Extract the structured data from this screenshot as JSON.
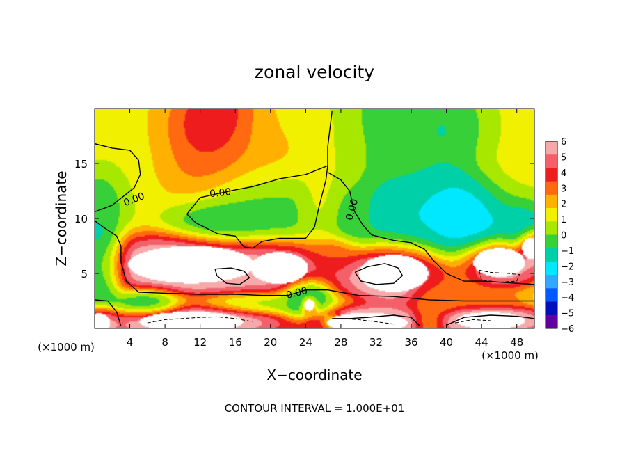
{
  "chart_data": {
    "type": "heatmap",
    "title": "zonal velocity",
    "xlabel": "X−coordinate",
    "ylabel": "Z−coordinate",
    "x_unit_label": "(×1000 m)",
    "footer": "CONTOUR INTERVAL = 1.000E+01",
    "xlim": [
      0,
      50
    ],
    "ylim": [
      0,
      20
    ],
    "x_ticks": [
      4,
      8,
      12,
      16,
      20,
      24,
      28,
      32,
      36,
      40,
      44,
      48
    ],
    "y_ticks": [
      5,
      10,
      15
    ],
    "colorbar": {
      "levels": [
        6,
        5,
        4,
        3,
        2,
        1,
        0,
        -1,
        -2,
        -3,
        -4,
        -5,
        -6
      ],
      "tick_labels": [
        "6",
        "5",
        "4",
        "3",
        "2",
        "1",
        "0",
        "−1",
        "−2",
        "−3",
        "−4",
        "−5",
        "−6"
      ],
      "colors": [
        "#f7a8a8",
        "#f4606a",
        "#ee1c1c",
        "#ff6a10",
        "#ffb000",
        "#f0f000",
        "#a8e800",
        "#38d038",
        "#00d0a8",
        "#00e8ff",
        "#30a8ff",
        "#0058ff",
        "#0010b8",
        "#6000a0"
      ]
    },
    "contour_labels": [
      {
        "text": "0.00",
        "x": 4.5,
        "z": 11.7,
        "angle": -22
      },
      {
        "text": "0.00",
        "x": 14.3,
        "z": 12.3,
        "angle": -6
      },
      {
        "text": "0.00",
        "x": 29.3,
        "z": 10.8,
        "angle": -74
      },
      {
        "text": "0.00",
        "x": 23.0,
        "z": 3.2,
        "angle": -14
      }
    ],
    "contour_lines": [
      {
        "style": "solid",
        "points": [
          [
            0,
            16.8
          ],
          [
            2,
            16.4
          ],
          [
            4,
            16.2
          ],
          [
            5,
            15.3
          ],
          [
            5.2,
            14
          ],
          [
            4.5,
            12.8
          ],
          [
            2,
            11.2
          ],
          [
            0,
            10.6
          ]
        ]
      },
      {
        "style": "solid",
        "points": [
          [
            10.5,
            10.4
          ],
          [
            12,
            11.9
          ],
          [
            16,
            12.6
          ],
          [
            18,
            12.9
          ],
          [
            21,
            13.6
          ],
          [
            24,
            14
          ],
          [
            26.5,
            14.8
          ],
          [
            26.5,
            16.5
          ],
          [
            27,
            19.8
          ]
        ]
      },
      {
        "style": "solid",
        "points": [
          [
            10.5,
            10.4
          ],
          [
            11.5,
            9.6
          ],
          [
            14,
            8.6
          ],
          [
            16,
            8.4
          ],
          [
            17,
            7.4
          ],
          [
            18,
            7.3
          ],
          [
            19,
            7.9
          ],
          [
            21,
            8.2
          ],
          [
            24,
            8.2
          ],
          [
            25,
            9.2
          ],
          [
            25.5,
            11
          ],
          [
            26.3,
            13.5
          ],
          [
            26.5,
            14.8
          ]
        ]
      },
      {
        "style": "solid",
        "points": [
          [
            26.5,
            14.2
          ],
          [
            28,
            13.5
          ],
          [
            29,
            12.5
          ],
          [
            29.5,
            10.7
          ],
          [
            30.5,
            9.4
          ],
          [
            31.5,
            8.5
          ],
          [
            34,
            8
          ],
          [
            36,
            7.8
          ],
          [
            37.5,
            7.2
          ],
          [
            38.5,
            6.2
          ],
          [
            40,
            5
          ],
          [
            42,
            4.3
          ],
          [
            44,
            4.3
          ],
          [
            46,
            4.2
          ],
          [
            48,
            4.1
          ],
          [
            50,
            4
          ]
        ]
      },
      {
        "style": "solid",
        "points": [
          [
            0,
            9.8
          ],
          [
            1,
            9.2
          ],
          [
            2.5,
            8.4
          ],
          [
            3,
            7.5
          ],
          [
            3,
            6
          ],
          [
            3.6,
            4.3
          ],
          [
            5,
            3.3
          ],
          [
            8,
            3.2
          ],
          [
            12,
            3.1
          ],
          [
            16,
            3.1
          ],
          [
            19,
            3
          ],
          [
            22,
            3
          ],
          [
            24,
            3.5
          ],
          [
            26.5,
            3.5
          ],
          [
            30,
            3
          ],
          [
            34,
            2.9
          ],
          [
            38,
            2.6
          ],
          [
            42,
            2.5
          ],
          [
            46,
            2.5
          ],
          [
            50,
            2.5
          ]
        ]
      },
      {
        "style": "solid",
        "points": [
          [
            0,
            2.6
          ],
          [
            1.5,
            2.5
          ],
          [
            2.5,
            1.5
          ],
          [
            3,
            0.2
          ]
        ]
      },
      {
        "style": "solid",
        "points": [
          [
            13.7,
            5.4
          ],
          [
            15.5,
            5.5
          ],
          [
            17,
            5.2
          ],
          [
            17.6,
            4.6
          ],
          [
            16.5,
            4
          ],
          [
            15,
            4.1
          ],
          [
            13.9,
            4.8
          ],
          [
            13.7,
            5.4
          ]
        ]
      },
      {
        "style": "solid",
        "points": [
          [
            29.6,
            5.1
          ],
          [
            31,
            5.6
          ],
          [
            33,
            5.9
          ],
          [
            34.5,
            5.5
          ],
          [
            35,
            4.8
          ],
          [
            34,
            4.1
          ],
          [
            32,
            4
          ],
          [
            30.3,
            4.3
          ],
          [
            29.6,
            5.1
          ]
        ]
      },
      {
        "style": "solid",
        "points": [
          [
            27,
            0.9
          ],
          [
            29,
            0.9
          ],
          [
            31,
            1
          ],
          [
            34,
            1.2
          ],
          [
            36,
            1
          ],
          [
            37,
            0.2
          ]
        ]
      },
      {
        "style": "solid",
        "points": [
          [
            40,
            0.3
          ],
          [
            42,
            1
          ],
          [
            45,
            1.2
          ],
          [
            48,
            1.1
          ],
          [
            50,
            0.9
          ]
        ]
      },
      {
        "style": "dashed",
        "points": [
          [
            43.7,
            5.3
          ],
          [
            45,
            5.1
          ],
          [
            47,
            5
          ],
          [
            48.3,
            4.9
          ],
          [
            48,
            4.3
          ],
          [
            46,
            4.2
          ],
          [
            44,
            4.4
          ],
          [
            43.7,
            5.3
          ]
        ]
      },
      {
        "style": "dashed",
        "points": [
          [
            6,
            0.5
          ],
          [
            8,
            0.8
          ],
          [
            10,
            0.9
          ],
          [
            12,
            1
          ],
          [
            14,
            1.05
          ],
          [
            16,
            0.9
          ],
          [
            18,
            0.6
          ]
        ]
      },
      {
        "style": "dashed",
        "points": [
          [
            28,
            0.9
          ],
          [
            30,
            0.8
          ],
          [
            32,
            0.6
          ],
          [
            34,
            0.4
          ]
        ]
      },
      {
        "style": "dashed",
        "points": [
          [
            41,
            0.5
          ],
          [
            43,
            0.8
          ],
          [
            45,
            0.7
          ]
        ]
      }
    ],
    "field_blobs": [
      {
        "x": 0,
        "z": 20,
        "rx": 12,
        "rz": 5,
        "v": 1
      },
      {
        "x": 4,
        "z": 15.5,
        "rx": 6,
        "rz": 5,
        "v": 0.6
      },
      {
        "x": 13,
        "z": 18.5,
        "rx": 5,
        "rz": 3.6,
        "v": 5.5
      },
      {
        "x": 12.5,
        "z": 15,
        "rx": 5.5,
        "rz": 4.5,
        "v": 3
      },
      {
        "x": 19.5,
        "z": 16,
        "rx": 6,
        "rz": 4,
        "v": 1.5
      },
      {
        "x": 18.5,
        "z": 11,
        "rx": 8,
        "rz": 3.5,
        "v": -2
      },
      {
        "x": 14,
        "z": 9.9,
        "rx": 5,
        "rz": 1.8,
        "v": -3
      },
      {
        "x": 23,
        "z": 18.5,
        "rx": 5,
        "rz": 2.5,
        "v": 0.8
      },
      {
        "x": 28,
        "z": 15.5,
        "rx": 3,
        "rz": 4,
        "v": 0.4
      },
      {
        "x": 33,
        "z": 17.5,
        "rx": 7,
        "rz": 4.5,
        "v": -1.5
      },
      {
        "x": 39.5,
        "z": 18,
        "rx": 7,
        "rz": 3.5,
        "v": -2.6
      },
      {
        "x": 47,
        "z": 17,
        "rx": 4.5,
        "rz": 6,
        "v": 0.8
      },
      {
        "x": 36,
        "z": 10.5,
        "rx": 8,
        "rz": 4,
        "v": -3.4
      },
      {
        "x": 42.5,
        "z": 10,
        "rx": 5,
        "rz": 4,
        "v": -4.5
      },
      {
        "x": 48.5,
        "z": 9,
        "rx": 2.5,
        "rz": 2.5,
        "v": -3.5
      },
      {
        "x": 1,
        "z": 12.5,
        "rx": 3,
        "rz": 3,
        "v": -2.5
      },
      {
        "x": 0.5,
        "z": 6,
        "rx": 2.5,
        "rz": 4,
        "v": -4
      },
      {
        "x": 30,
        "z": 10.5,
        "rx": 2.5,
        "rz": 2.5,
        "v": -1.5
      },
      {
        "x": 25.5,
        "z": 11.5,
        "rx": 2.2,
        "rz": 3.5,
        "v": 1
      },
      {
        "x": 11,
        "z": 5.8,
        "rx": 11,
        "rz": 2.6,
        "v": 8
      },
      {
        "x": 21,
        "z": 5.5,
        "rx": 5,
        "rz": 2.2,
        "v": 6
      },
      {
        "x": 34,
        "z": 5,
        "rx": 6,
        "rz": 2.6,
        "v": 8
      },
      {
        "x": 46,
        "z": 6,
        "rx": 4.5,
        "rz": 2,
        "v": 8
      },
      {
        "x": 49.6,
        "z": 7.3,
        "rx": 1.5,
        "rz": 1.5,
        "v": 8
      },
      {
        "x": 27,
        "z": 6.8,
        "rx": 2.5,
        "rz": 1.4,
        "v": 3
      },
      {
        "x": 38.5,
        "z": 3,
        "rx": 2.5,
        "rz": 2,
        "v": 2
      },
      {
        "x": 20,
        "z": 2.3,
        "rx": 7,
        "rz": 0.9,
        "v": -1
      },
      {
        "x": 24,
        "z": 2.7,
        "rx": 2.5,
        "rz": 1.8,
        "v": -4
      },
      {
        "x": 44,
        "z": 2.6,
        "rx": 4,
        "rz": 0.8,
        "v": 3
      },
      {
        "x": 6,
        "z": 2.3,
        "rx": 3.5,
        "rz": 1.2,
        "v": -3
      },
      {
        "x": 11,
        "z": 0.6,
        "rx": 9,
        "rz": 1.4,
        "v": 8
      },
      {
        "x": 31,
        "z": 0.5,
        "rx": 7,
        "rz": 1.4,
        "v": 8
      },
      {
        "x": 45,
        "z": 0.7,
        "rx": 6,
        "rz": 1.2,
        "v": 8
      },
      {
        "x": 0.5,
        "z": 0.5,
        "rx": 2,
        "rz": 1.3,
        "v": 7
      },
      {
        "x": 24.4,
        "z": 2.1,
        "rx": 0.9,
        "rz": 0.8,
        "v": 8
      },
      {
        "x": 25.3,
        "z": 0.2,
        "rx": 1.1,
        "rz": 0.6,
        "v": 4
      },
      {
        "x": 27,
        "z": 0.5,
        "rx": 1.4,
        "rz": 0.8,
        "v": -3
      },
      {
        "x": 38,
        "z": 0.6,
        "rx": 1.6,
        "rz": 1.2,
        "v": 1
      }
    ]
  }
}
